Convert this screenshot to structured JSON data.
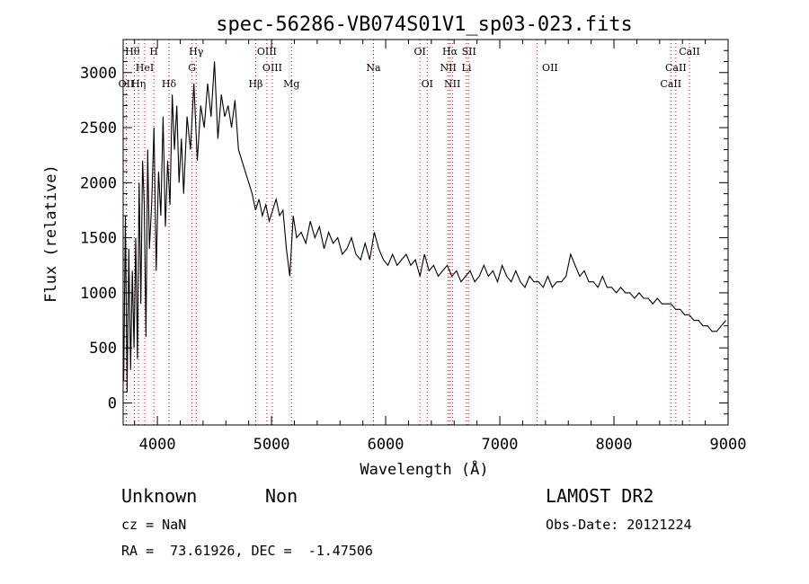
{
  "chart_data": {
    "type": "line",
    "title": "spec-56286-VB074S01V1_sp03-023.fits",
    "xlabel": "Wavelength (Å)",
    "ylabel": "Flux (relative)",
    "xlim": [
      3700,
      9000
    ],
    "ylim": [
      -200,
      3300
    ],
    "xticks": [
      4000,
      5000,
      6000,
      7000,
      8000,
      9000
    ],
    "yticks": [
      0,
      500,
      1000,
      1500,
      2000,
      2500,
      3000
    ],
    "line_color": "#000000",
    "marker_color": "#cc0000",
    "series": [
      {
        "x": [
          3705,
          3720,
          3735,
          3750,
          3765,
          3780,
          3795,
          3810,
          3825,
          3840,
          3855,
          3870,
          3885,
          3900,
          3915,
          3930,
          3950,
          3970,
          3990,
          4010,
          4030,
          4050,
          4070,
          4090,
          4110,
          4130,
          4150,
          4170,
          4190,
          4210,
          4230,
          4260,
          4290,
          4320,
          4350,
          4380,
          4410,
          4440,
          4470,
          4500,
          4530,
          4560,
          4590,
          4620,
          4650,
          4680,
          4710,
          4740,
          4770,
          4800,
          4830,
          4860,
          4890,
          4920,
          4950,
          4980,
          5010,
          5040,
          5070,
          5100,
          5130,
          5160,
          5190,
          5220,
          5260,
          5300,
          5340,
          5380,
          5420,
          5460,
          5500,
          5540,
          5580,
          5620,
          5660,
          5700,
          5740,
          5780,
          5820,
          5860,
          5900,
          5940,
          5980,
          6020,
          6060,
          6100,
          6140,
          6180,
          6220,
          6260,
          6300,
          6340,
          6380,
          6420,
          6460,
          6500,
          6540,
          6580,
          6620,
          6660,
          6700,
          6740,
          6780,
          6820,
          6860,
          6900,
          6940,
          6980,
          7020,
          7060,
          7100,
          7140,
          7180,
          7220,
          7260,
          7300,
          7340,
          7380,
          7420,
          7460,
          7500,
          7540,
          7580,
          7620,
          7660,
          7700,
          7740,
          7780,
          7820,
          7860,
          7900,
          7940,
          7980,
          8020,
          8060,
          8100,
          8140,
          8180,
          8220,
          8260,
          8300,
          8340,
          8380,
          8420,
          8460,
          8500,
          8540,
          8580,
          8620,
          8660,
          8700,
          8740,
          8780,
          8820,
          8860,
          8900,
          8940,
          8980
        ],
        "y": [
          200,
          1700,
          100,
          1400,
          300,
          1200,
          500,
          1500,
          400,
          2000,
          900,
          2200,
          1800,
          600,
          2300,
          1400,
          1800,
          2500,
          1200,
          2100,
          1700,
          2600,
          1600,
          2200,
          1800,
          2800,
          2300,
          2700,
          2000,
          2400,
          1900,
          2600,
          2300,
          2900,
          2200,
          2700,
          2500,
          2900,
          2600,
          3100,
          2400,
          2800,
          2600,
          2700,
          2500,
          2750,
          2300,
          2200,
          2100,
          2000,
          1900,
          1750,
          1850,
          1700,
          1800,
          1650,
          1750,
          1850,
          1700,
          1750,
          1400,
          1150,
          1700,
          1500,
          1550,
          1450,
          1650,
          1500,
          1600,
          1400,
          1550,
          1450,
          1500,
          1350,
          1400,
          1500,
          1350,
          1300,
          1450,
          1300,
          1550,
          1400,
          1300,
          1250,
          1350,
          1250,
          1300,
          1350,
          1250,
          1300,
          1150,
          1350,
          1200,
          1250,
          1150,
          1200,
          1250,
          1150,
          1200,
          1100,
          1150,
          1200,
          1100,
          1150,
          1250,
          1150,
          1200,
          1100,
          1250,
          1150,
          1100,
          1200,
          1100,
          1050,
          1150,
          1100,
          1100,
          1050,
          1150,
          1050,
          1100,
          1100,
          1150,
          1350,
          1250,
          1150,
          1200,
          1100,
          1100,
          1050,
          1150,
          1050,
          1050,
          1000,
          1050,
          1000,
          1000,
          950,
          1000,
          950,
          950,
          900,
          950,
          900,
          900,
          900,
          850,
          850,
          800,
          800,
          750,
          750,
          700,
          700,
          650,
          650,
          700,
          750
        ]
      }
    ],
    "lines": [
      {
        "label": "Hθ",
        "x": 3798,
        "row": 0,
        "ax": 3782
      },
      {
        "label": "H",
        "x": 3969,
        "row": 0,
        "ax": 3969
      },
      {
        "label": "Hγ",
        "x": 4340,
        "row": 0,
        "ax": 4340
      },
      {
        "label": "OIII",
        "x": 4959,
        "row": 0,
        "ax": 4959
      },
      {
        "label": "OI",
        "x": 6300,
        "row": 0,
        "ax": 6300
      },
      {
        "label": "Hα",
        "x": 6563,
        "row": 0,
        "ax": 6563
      },
      {
        "label": "SII",
        "x": 6725,
        "row": 0,
        "ax": 6730
      },
      {
        "label": "CaII",
        "x": 8662,
        "row": 0,
        "ax": 8662
      },
      {
        "label": "HeI",
        "x": 3889,
        "row": 1,
        "ax": 3889
      },
      {
        "label": "G",
        "x": 4304,
        "row": 1,
        "ax": 4304
      },
      {
        "label": "OIII",
        "x": 5007,
        "row": 1,
        "ax": 5007
      },
      {
        "label": "Na",
        "x": 5893,
        "row": 1,
        "ax": 5893
      },
      {
        "label": "NII",
        "x": 6548,
        "row": 1,
        "ax": 6548
      },
      {
        "label": "Li",
        "x": 6708,
        "row": 1,
        "ax": 6708
      },
      {
        "label": "OII",
        "x": 7325,
        "row": 1,
        "ax": 7440
      },
      {
        "label": "CaII",
        "x": 8542,
        "row": 1,
        "ax": 8542
      },
      {
        "label": "OII",
        "x": 3727,
        "row": 2,
        "ax": 3727
      },
      {
        "label": "Hη",
        "x": 3835,
        "row": 2,
        "ax": 3835
      },
      {
        "label": "Hδ",
        "x": 4102,
        "row": 2,
        "ax": 4102
      },
      {
        "label": "Hβ",
        "x": 4861,
        "row": 2,
        "ax": 4861
      },
      {
        "label": "Mg",
        "x": 5175,
        "row": 2,
        "ax": 5175
      },
      {
        "label": "OI",
        "x": 6364,
        "row": 2,
        "ax": 6364
      },
      {
        "label": "NII",
        "x": 6584,
        "row": 2,
        "ax": 6584
      },
      {
        "label": "CaII",
        "x": 8498,
        "row": 2,
        "ax": 8498
      }
    ]
  },
  "info": {
    "object_class": "Unknown",
    "subclass": "Non",
    "survey": "LAMOST DR2",
    "cz": "cz = NaN",
    "obs_date": "Obs-Date: 20121224",
    "coords": "RA =  73.61926, DEC =  -1.47506"
  }
}
